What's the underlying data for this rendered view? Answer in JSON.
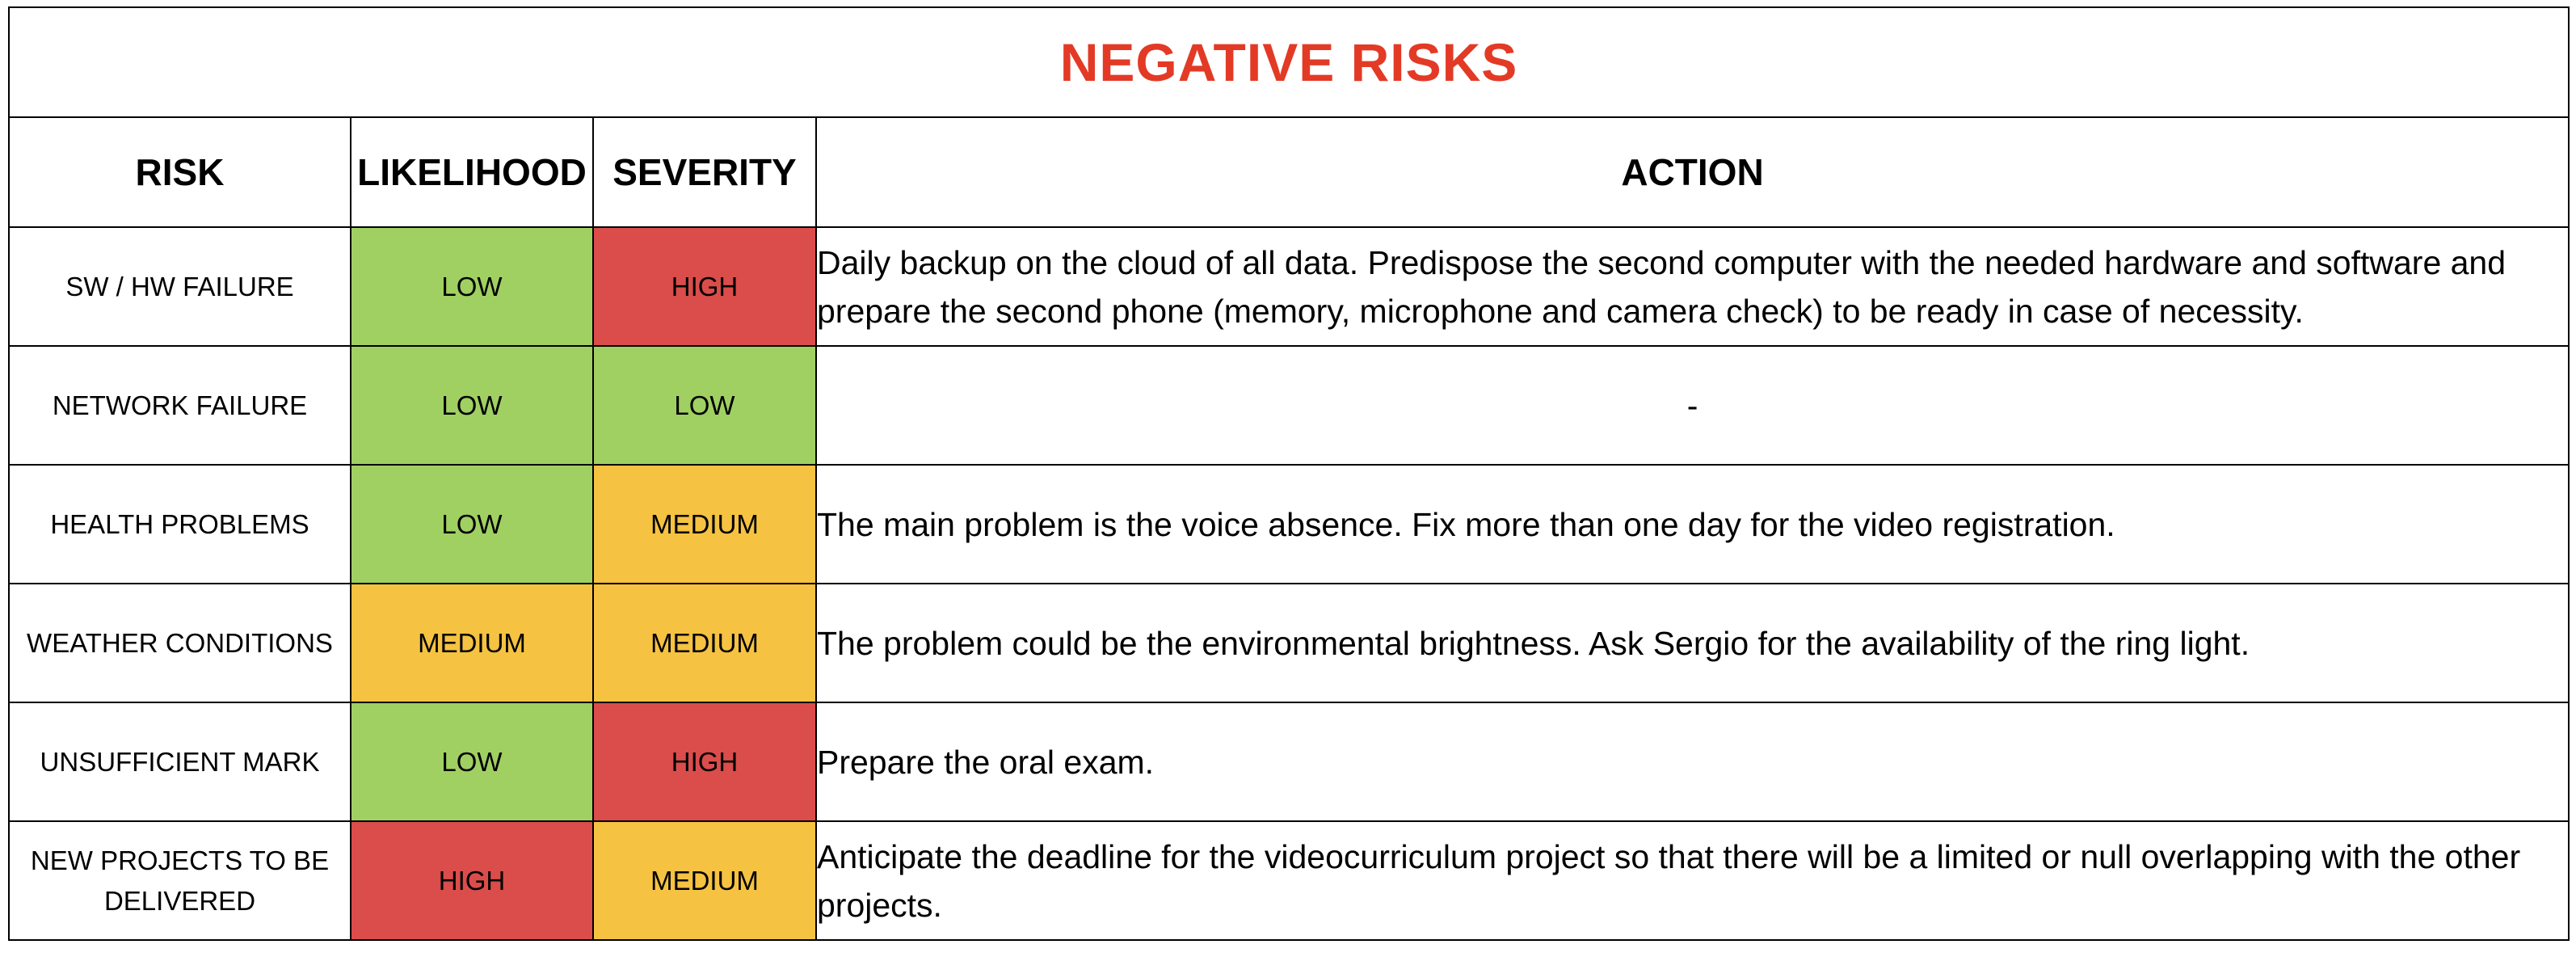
{
  "title": "NEGATIVE RISKS",
  "headers": {
    "risk": "RISK",
    "likelihood": "LIKELIHOOD",
    "severity": "SEVERITY",
    "action": "ACTION"
  },
  "level_colors": {
    "LOW": "#a0d062",
    "MEDIUM": "#f5c242",
    "HIGH": "#da4d4a"
  },
  "title_color": "#e33a26",
  "rows": [
    {
      "risk": "SW / HW FAILURE",
      "likelihood": "LOW",
      "severity": "HIGH",
      "action": "Daily backup on the cloud of all data. Predispose the second computer with the needed hardware and software and prepare the second phone (memory, microphone and camera check) to be ready in case of necessity."
    },
    {
      "risk": "NETWORK FAILURE",
      "likelihood": "LOW",
      "severity": "LOW",
      "action": "-"
    },
    {
      "risk": "HEALTH PROBLEMS",
      "likelihood": "LOW",
      "severity": "MEDIUM",
      "action": "The main problem is the voice absence. Fix more than one day for the video registration."
    },
    {
      "risk": "WEATHER CONDITIONS",
      "likelihood": "MEDIUM",
      "severity": "MEDIUM",
      "action": "The problem could be the environmental brightness. Ask Sergio for the availability of the ring light."
    },
    {
      "risk": "UNSUFFICIENT MARK",
      "likelihood": "LOW",
      "severity": "HIGH",
      "action": "Prepare the oral exam."
    },
    {
      "risk": "NEW PROJECTS TO BE DELIVERED",
      "likelihood": "HIGH",
      "severity": "MEDIUM",
      "action": "Anticipate the deadline for the videocurriculum project so that there will be a limited or null overlapping with the other projects."
    }
  ]
}
